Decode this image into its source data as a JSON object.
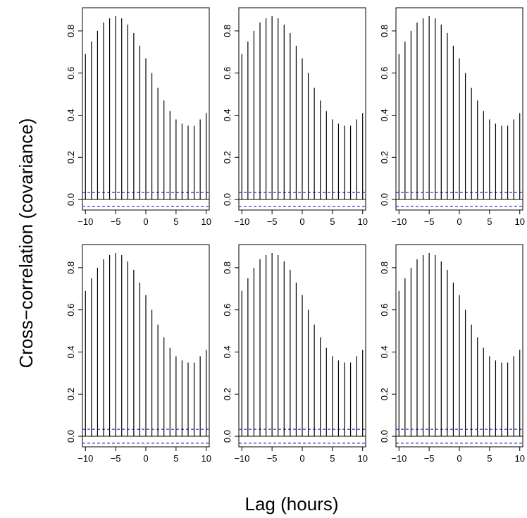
{
  "chart_data": {
    "type": "bar",
    "ylabel": "Cross−correlation (covariance)",
    "xlabel": "Lag (hours)",
    "xlim": [
      -10.5,
      10.5
    ],
    "ylim": [
      -0.05,
      0.91
    ],
    "x_ticks": [
      -10,
      -5,
      0,
      5,
      10
    ],
    "y_ticks": [
      0.0,
      0.2,
      0.4,
      0.6,
      0.8
    ],
    "y_tick_labels": [
      "0.0",
      "0.2",
      "0.4",
      "0.6",
      "0.8"
    ],
    "x_tick_labels": [
      "−10",
      "−5",
      "0",
      "5",
      "10"
    ],
    "grid": "none",
    "colors": {
      "bars": "#000000",
      "confidence_band": "#0000cc",
      "frame": "#000000"
    },
    "confidence_band": [
      0.033,
      -0.033
    ],
    "panels": [
      {
        "lags": [
          -10,
          -9,
          -8,
          -7,
          -6,
          -5,
          -4,
          -3,
          -2,
          -1,
          0,
          1,
          2,
          3,
          4,
          5,
          6,
          7,
          8,
          9,
          10
        ],
        "values": [
          0.69,
          0.75,
          0.8,
          0.84,
          0.86,
          0.87,
          0.86,
          0.83,
          0.79,
          0.73,
          0.67,
          0.6,
          0.53,
          0.47,
          0.42,
          0.38,
          0.36,
          0.35,
          0.35,
          0.38,
          0.41
        ]
      },
      {
        "lags": [
          -10,
          -9,
          -8,
          -7,
          -6,
          -5,
          -4,
          -3,
          -2,
          -1,
          0,
          1,
          2,
          3,
          4,
          5,
          6,
          7,
          8,
          9,
          10
        ],
        "values": [
          0.69,
          0.75,
          0.8,
          0.84,
          0.86,
          0.87,
          0.86,
          0.83,
          0.79,
          0.73,
          0.67,
          0.6,
          0.53,
          0.47,
          0.42,
          0.38,
          0.36,
          0.35,
          0.35,
          0.38,
          0.41
        ]
      },
      {
        "lags": [
          -10,
          -9,
          -8,
          -7,
          -6,
          -5,
          -4,
          -3,
          -2,
          -1,
          0,
          1,
          2,
          3,
          4,
          5,
          6,
          7,
          8,
          9,
          10
        ],
        "values": [
          0.69,
          0.75,
          0.8,
          0.84,
          0.86,
          0.87,
          0.86,
          0.83,
          0.79,
          0.73,
          0.67,
          0.6,
          0.53,
          0.47,
          0.42,
          0.38,
          0.36,
          0.35,
          0.35,
          0.38,
          0.41
        ]
      },
      {
        "lags": [
          -10,
          -9,
          -8,
          -7,
          -6,
          -5,
          -4,
          -3,
          -2,
          -1,
          0,
          1,
          2,
          3,
          4,
          5,
          6,
          7,
          8,
          9,
          10
        ],
        "values": [
          0.69,
          0.75,
          0.8,
          0.84,
          0.86,
          0.87,
          0.86,
          0.83,
          0.79,
          0.73,
          0.67,
          0.6,
          0.53,
          0.47,
          0.42,
          0.38,
          0.36,
          0.35,
          0.35,
          0.38,
          0.41
        ]
      },
      {
        "lags": [
          -10,
          -9,
          -8,
          -7,
          -6,
          -5,
          -4,
          -3,
          -2,
          -1,
          0,
          1,
          2,
          3,
          4,
          5,
          6,
          7,
          8,
          9,
          10
        ],
        "values": [
          0.69,
          0.75,
          0.8,
          0.84,
          0.86,
          0.87,
          0.86,
          0.83,
          0.79,
          0.73,
          0.67,
          0.6,
          0.53,
          0.47,
          0.42,
          0.38,
          0.36,
          0.35,
          0.35,
          0.38,
          0.41
        ]
      },
      {
        "lags": [
          -10,
          -9,
          -8,
          -7,
          -6,
          -5,
          -4,
          -3,
          -2,
          -1,
          0,
          1,
          2,
          3,
          4,
          5,
          6,
          7,
          8,
          9,
          10
        ],
        "values": [
          0.69,
          0.75,
          0.8,
          0.84,
          0.86,
          0.87,
          0.86,
          0.83,
          0.79,
          0.73,
          0.67,
          0.6,
          0.53,
          0.47,
          0.42,
          0.38,
          0.36,
          0.35,
          0.35,
          0.38,
          0.41
        ]
      }
    ]
  }
}
